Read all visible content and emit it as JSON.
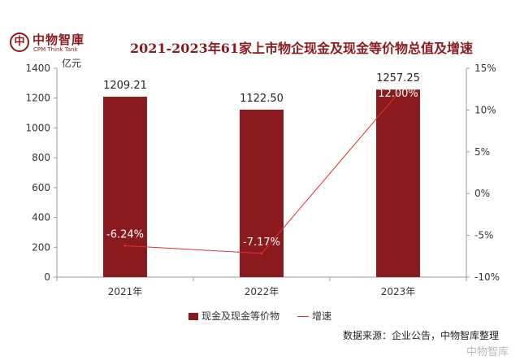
{
  "header": {
    "logo_mark": "中",
    "logo_name": "中物智庫",
    "logo_sub": "CPM Think Tank",
    "title": "2021-2023年61家上市物企现金及现金等价物总值及增速"
  },
  "chart_data": {
    "type": "bar",
    "categories": [
      "2021年",
      "2022年",
      "2023年"
    ],
    "series": [
      {
        "name": "现金及现金等价物",
        "type": "bar",
        "axis": "left",
        "values": [
          1209.21,
          1122.5,
          1257.25
        ],
        "labels": [
          "1209.21",
          "1122.50",
          "1257.25"
        ]
      },
      {
        "name": "增速",
        "type": "line",
        "axis": "right",
        "values": [
          -6.24,
          -7.17,
          12.0
        ],
        "labels": [
          "-6.24%",
          "-7.17%",
          "12.00%"
        ]
      }
    ],
    "ylabel": "亿元",
    "ylim": [
      0,
      1400
    ],
    "yticks": [
      "0",
      "200",
      "400",
      "600",
      "800",
      "1000",
      "1200",
      "1400"
    ],
    "y2lim": [
      -10,
      15
    ],
    "y2ticks": [
      "-10%",
      "-5%",
      "0%",
      "5%",
      "10%",
      "15%"
    ],
    "grid": false,
    "legend": "bottom",
    "colors": {
      "bar": "#8a1a1e",
      "line": "#e03030"
    }
  },
  "legend": {
    "bar_label": "现金及现金等价物",
    "line_label": "增速"
  },
  "footer": {
    "source": "数据来源：企业公告，中物智库整理",
    "watermark": "中物智库"
  }
}
